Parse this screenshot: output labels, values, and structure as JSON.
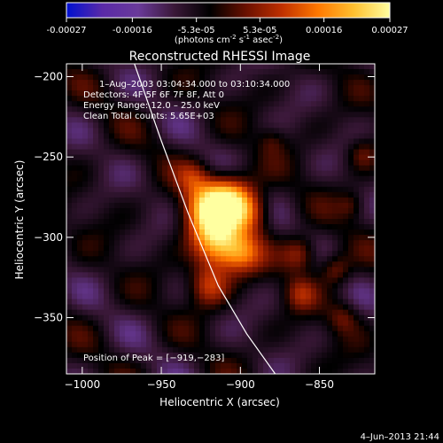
{
  "colorbar": {
    "ticks": [
      "-0.00027",
      "-0.00016",
      "-5.3e-05",
      "5.3e-05",
      "0.00016",
      "0.00027"
    ],
    "tick_values": [
      -0.00027,
      -0.00016,
      -5.3e-05,
      5.3e-05,
      0.00016,
      0.00027
    ],
    "range": [
      -0.00027,
      0.00027
    ],
    "unit_label": "(photons cm",
    "unit_exp1": "-2",
    "unit_mid": " s",
    "unit_exp2": "-1",
    "unit_end": " asec",
    "unit_exp3": "-2",
    "unit_close": ")",
    "colors": [
      "#0010d0",
      "#5a2aa8",
      "#6a3a9a",
      "#3a1838",
      "#000000",
      "#6a1000",
      "#c03000",
      "#ff7800",
      "#ffc030",
      "#ffffa0"
    ]
  },
  "chart_data": {
    "type": "heatmap",
    "title": "Reconstructed RHESSI Image",
    "xlabel": "Heliocentric X (arcsec)",
    "ylabel": "Heliocentric Y (arcsec)",
    "xlim": [
      -1010,
      -815
    ],
    "ylim": [
      -385,
      -192
    ],
    "x_ticks": [
      -1000,
      -950,
      -900,
      -850
    ],
    "x_tick_labels": [
      "−1000",
      "−950",
      "−900",
      "−850"
    ],
    "y_ticks": [
      -200,
      -250,
      -300,
      -350
    ],
    "y_tick_labels": [
      "−200",
      "−250",
      "−300",
      "−350"
    ],
    "annotations": [
      "1–Aug–2003 03:04:34.000 to 03:10:34.000",
      "Detectors: 4F 5F 6F 7F 8F, Att 0",
      "Energy Range: 12.0 – 25.0 keV",
      "Clean    Total counts: 5.65E+03"
    ],
    "peak_label": "Position of Peak = [−919,−283]",
    "peak": [
      -919,
      -283
    ],
    "limb_points": [
      [
        -967,
        -192
      ],
      [
        -950,
        -240
      ],
      [
        -933,
        -285
      ],
      [
        -914,
        -330
      ],
      [
        -896,
        -360
      ],
      [
        -878,
        -385
      ]
    ],
    "sources": [
      {
        "x": -919,
        "y": -283,
        "amp": 1.0,
        "r": 12
      },
      {
        "x": -905,
        "y": -276,
        "amp": 0.75,
        "r": 11
      },
      {
        "x": -893,
        "y": -285,
        "amp": 0.45,
        "r": 9
      },
      {
        "x": -915,
        "y": -305,
        "amp": 0.85,
        "r": 11
      },
      {
        "x": -899,
        "y": -310,
        "amp": 0.55,
        "r": 9
      },
      {
        "x": -920,
        "y": -330,
        "amp": 0.55,
        "r": 9
      },
      {
        "x": -930,
        "y": -262,
        "amp": 0.3,
        "r": 7
      },
      {
        "x": -862,
        "y": -310,
        "amp": 0.5,
        "r": 8
      },
      {
        "x": -862,
        "y": -335,
        "amp": 0.35,
        "r": 7
      },
      {
        "x": -840,
        "y": -320,
        "amp": 0.4,
        "r": 7
      },
      {
        "x": -823,
        "y": -248,
        "amp": 0.3,
        "r": 7
      },
      {
        "x": -835,
        "y": -350,
        "amp": 0.3,
        "r": 7
      },
      {
        "x": -830,
        "y": -280,
        "amp": 0.25,
        "r": 6
      },
      {
        "x": -880,
        "y": -240,
        "amp": 0.2,
        "r": 6
      }
    ]
  },
  "timestamp": "4–Jun–2013 21:44"
}
